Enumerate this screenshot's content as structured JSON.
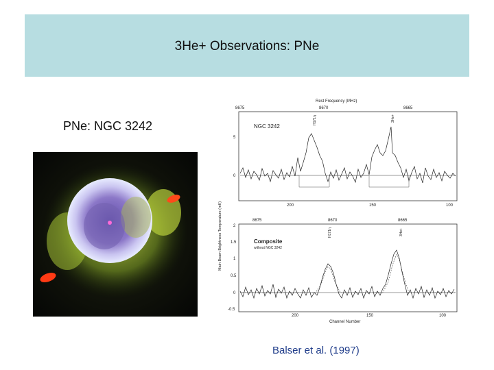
{
  "slide": {
    "title": "3He+ Observations: PNe",
    "subtitle": "PNe: NGC 3242",
    "citation": "Balser et al. (1997)"
  },
  "spectrum": {
    "top_axis_label": "Rest Frequency (MHz)",
    "top_axis_ticks": [
      "8675",
      "8670",
      "8665"
    ],
    "upper_panel": {
      "label": "NGC 3242",
      "line_labels": [
        "H171η",
        "3He+"
      ],
      "y_ticks": [
        "5",
        "0"
      ],
      "x_ticks": [
        "200",
        "150",
        "100"
      ]
    },
    "lower_panel": {
      "label": "Composite",
      "sublabel": "without NGC 3242",
      "top_ticks": [
        "8675",
        "8670",
        "8665"
      ],
      "line_labels": [
        "H171η",
        "3He+"
      ],
      "y_ticks": [
        "2",
        "1.5",
        "1",
        "0.5",
        "0",
        "-0.5"
      ],
      "x_ticks": [
        "200",
        "150",
        "100"
      ]
    },
    "y_axis_label": "Main Beam Brightness Temperature (mK)",
    "x_axis_label": "Channel Number"
  }
}
